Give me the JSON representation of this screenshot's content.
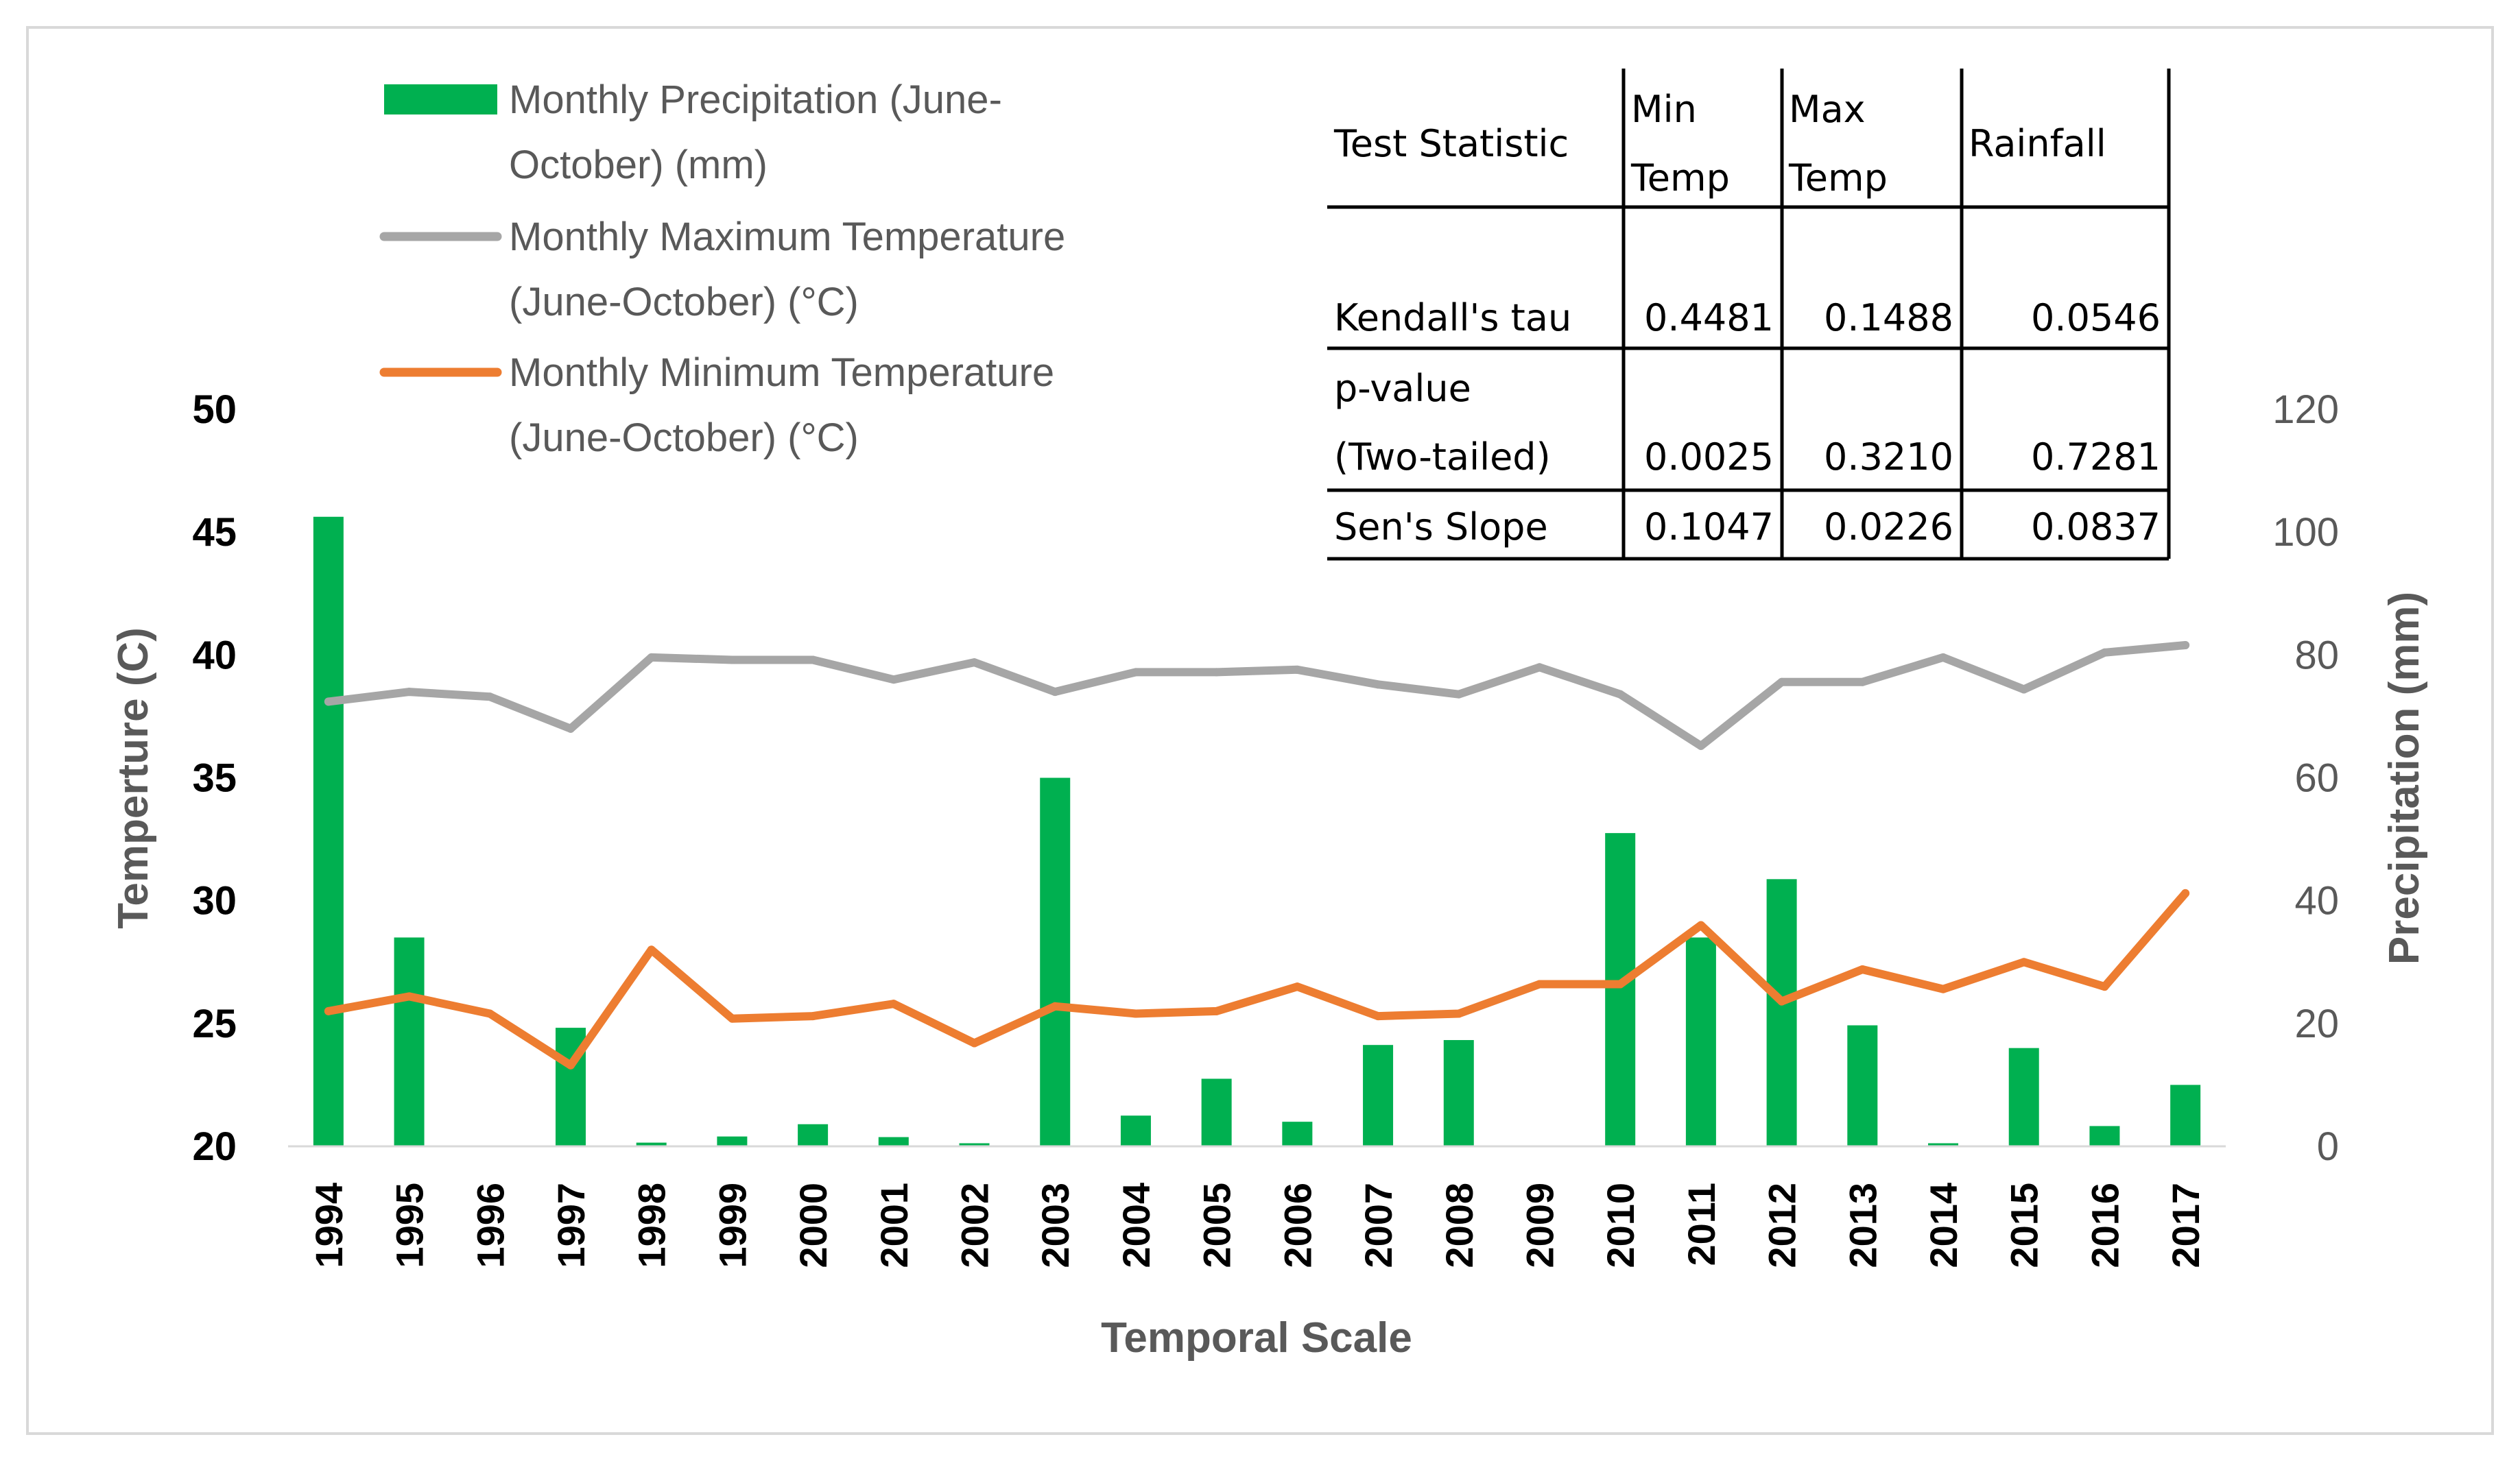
{
  "chart_data": {
    "type": "bar",
    "categories": [
      "1994",
      "1995",
      "1996",
      "1997",
      "1998",
      "1999",
      "2000",
      "2001",
      "2002",
      "2003",
      "2004",
      "2005",
      "2006",
      "2007",
      "2008",
      "2009",
      "2010",
      "2011",
      "2012",
      "2013",
      "2014",
      "2015",
      "2016",
      "2017"
    ],
    "xlabel": "Temporal Scale",
    "ylabel": "Temperture (C)",
    "y2label": "Precipitation (mm)",
    "ylim": [
      20,
      50
    ],
    "y2lim": [
      0,
      120
    ],
    "yticks": [
      "20",
      "25",
      "30",
      "35",
      "40",
      "45",
      "50"
    ],
    "y2ticks": [
      "0",
      "20",
      "40",
      "60",
      "80",
      "100",
      "120"
    ],
    "legend_position": "top-left",
    "series": [
      {
        "name": "Monthly Precipitation (June-October) (mm)",
        "type": "bar",
        "axis": "right",
        "color": "#00b050",
        "values": [
          102.5,
          34,
          0,
          19.3,
          0.6,
          1.6,
          3.6,
          1.5,
          0.5,
          60,
          5,
          11,
          4,
          16.5,
          17.3,
          0,
          51,
          34,
          43.5,
          19.7,
          0.5,
          16,
          3.3,
          10
        ]
      },
      {
        "name": "Monthly Maximum Temperature (June-October) (°C)",
        "type": "line",
        "axis": "left",
        "color": "#a6a6a6",
        "values": [
          38.1,
          38.5,
          38.3,
          37.0,
          39.9,
          39.8,
          39.8,
          39.0,
          39.7,
          38.5,
          39.3,
          39.3,
          39.4,
          38.8,
          38.4,
          39.5,
          38.4,
          36.3,
          38.9,
          38.9,
          39.9,
          38.6,
          40.1,
          40.4
        ]
      },
      {
        "name": "Monthly Minimum Temperature (June-October) (°C)",
        "type": "line",
        "axis": "left",
        "color": "#ed7d31",
        "values": [
          25.5,
          26.1,
          25.4,
          23.3,
          28.0,
          25.2,
          25.3,
          25.8,
          24.2,
          25.7,
          25.4,
          25.5,
          26.5,
          25.3,
          25.4,
          26.6,
          26.6,
          29.0,
          25.9,
          27.2,
          26.4,
          27.5,
          26.5,
          30.3
        ]
      }
    ]
  },
  "stats_table": {
    "headers": [
      "Test Statistic",
      "Min Temp",
      "Max Temp",
      "Rainfall"
    ],
    "header_lines": [
      [
        "Test Statistic"
      ],
      [
        "Min",
        "Temp"
      ],
      [
        "Max",
        "Temp"
      ],
      [
        "Rainfall"
      ]
    ],
    "rows": [
      {
        "label": "Kendall's tau",
        "label_lines": [
          "Kendall's tau"
        ],
        "values": [
          "0.4481",
          "0.1488",
          "0.0546"
        ]
      },
      {
        "label": "p-value (Two-tailed)",
        "label_lines": [
          "p-value",
          "(Two-tailed)"
        ],
        "values": [
          "0.0025",
          "0.3210",
          "0.7281"
        ]
      },
      {
        "label": "Sen's Slope",
        "label_lines": [
          "Sen's Slope"
        ],
        "values": [
          "0.1047",
          "0.0226",
          "0.0837"
        ]
      }
    ]
  },
  "legend": [
    {
      "lines": [
        "Monthly Precipitation (June-",
        "October) (mm)"
      ],
      "color": "#00b050",
      "kind": "bar"
    },
    {
      "lines": [
        "Monthly Maximum Temperature",
        "(June-October) (°C)"
      ],
      "color": "#a6a6a6",
      "kind": "line"
    },
    {
      "lines": [
        "Monthly Minimum Temperature",
        "(June-October) (°C)"
      ],
      "color": "#ed7d31",
      "kind": "line"
    }
  ]
}
